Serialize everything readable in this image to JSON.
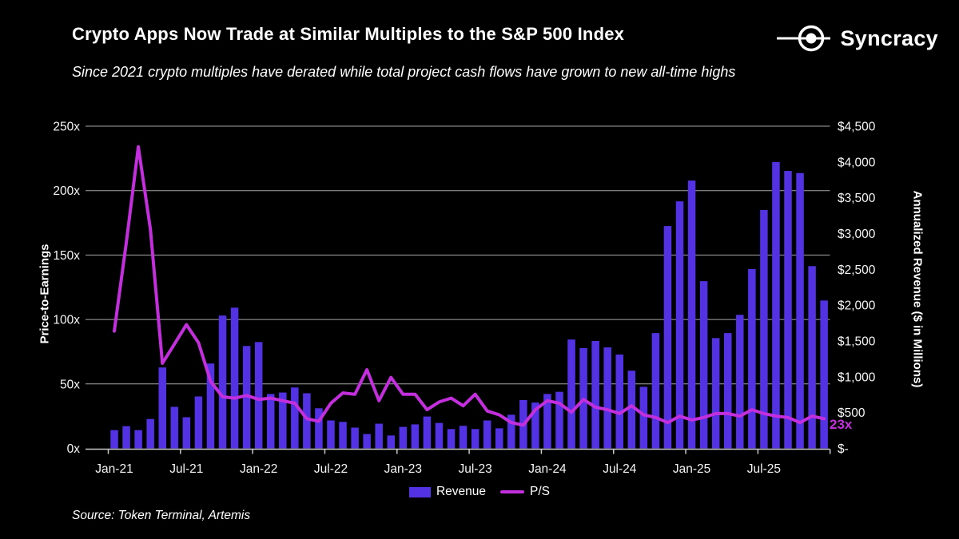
{
  "header": {
    "title": "Crypto Apps Now Trade at Similar Multiples to the S&P 500 Index",
    "subtitle": "Since 2021 crypto multiples have derated while total project cash flows have grown to new all-time highs",
    "brand": "Syncracy"
  },
  "footer": {
    "source": "Source: Token Terminal, Artemis"
  },
  "legend": {
    "items": [
      {
        "label": "Revenue"
      },
      {
        "label": "P/S"
      }
    ]
  },
  "annotation": {
    "text": "23x"
  },
  "colors": {
    "background": "#000000",
    "bar": "#5332E4",
    "line": "#C32FDC",
    "gridline": "#A6A6A6",
    "axis": "#C9C9C9",
    "text": "#FFFFFF"
  },
  "chart_data": {
    "type": "bar+line",
    "x": [
      "Jan-21",
      "Feb-21",
      "Mar-21",
      "Apr-21",
      "May-21",
      "Jun-21",
      "Jul-21",
      "Aug-21",
      "Sep-21",
      "Oct-21",
      "Nov-21",
      "Dec-21",
      "Jan-22",
      "Feb-22",
      "Mar-22",
      "Apr-22",
      "May-22",
      "Jun-22",
      "Jul-22",
      "Aug-22",
      "Sep-22",
      "Oct-22",
      "Nov-22",
      "Dec-22",
      "Jan-23",
      "Feb-23",
      "Mar-23",
      "Apr-23",
      "May-23",
      "Jun-23",
      "Jul-23",
      "Aug-23",
      "Sep-23",
      "Oct-23",
      "Nov-23",
      "Dec-23",
      "Jan-24",
      "Feb-24",
      "Mar-24",
      "Apr-24",
      "May-24",
      "Jun-24",
      "Jul-24",
      "Aug-24",
      "Sep-24",
      "Oct-24",
      "Nov-24",
      "Dec-24",
      "Jan-25",
      "Feb-25",
      "Mar-25",
      "Apr-25",
      "May-25",
      "Jun-25",
      "Jul-25",
      "Aug-25",
      "Sep-25",
      "Oct-25",
      "Nov-25",
      "Dec-25"
    ],
    "series": [
      {
        "name": "Revenue",
        "type": "bar",
        "axis": "right",
        "units": "$M",
        "values": [
          255,
          310,
          255,
          410,
          1130,
          580,
          435,
          725,
          1185,
          1855,
          1965,
          1430,
          1485,
          760,
          780,
          850,
          770,
          560,
          390,
          370,
          290,
          200,
          345,
          180,
          300,
          335,
          445,
          355,
          270,
          315,
          270,
          390,
          280,
          470,
          675,
          640,
          760,
          790,
          1520,
          1400,
          1500,
          1410,
          1310,
          1085,
          860,
          1610,
          3105,
          3450,
          3740,
          2335,
          1540,
          1610,
          1865,
          2505,
          3330,
          4000,
          3875,
          3845,
          2545,
          2065
        ]
      },
      {
        "name": "P/S",
        "type": "line",
        "axis": "left",
        "units": "x",
        "values": [
          91,
          160,
          234,
          170,
          66,
          81,
          96,
          82,
          52,
          40,
          39,
          41,
          38,
          39,
          37,
          35,
          23,
          21,
          35,
          43,
          42,
          61,
          37,
          55,
          42,
          42,
          30,
          36,
          39,
          33,
          42,
          29,
          26,
          20,
          18,
          30,
          37,
          35,
          28,
          38,
          32,
          30,
          27,
          33,
          26,
          24,
          20,
          25,
          22,
          24,
          27,
          27,
          25,
          30,
          27,
          25,
          24,
          20,
          25,
          23
        ]
      }
    ],
    "left_axis": {
      "label": "Price-to-Earnings",
      "min": 0,
      "max": 250,
      "step": 50,
      "ticks": [
        "0x",
        "50x",
        "100x",
        "150x",
        "200x",
        "250x"
      ]
    },
    "right_axis": {
      "label": "Annualized Revenue ($ in Millions)",
      "min": 0,
      "max": 4500,
      "step": 500,
      "ticks": [
        "$-",
        "$500",
        "$1,000",
        "$1,500",
        "$2,000",
        "$2,500",
        "$3,000",
        "$3,500",
        "$4,000",
        "$4,500"
      ]
    },
    "x_tick_labels": [
      "Jan-21",
      "Jul-21",
      "Jan-22",
      "Jul-22",
      "Jan-23",
      "Jul-23",
      "Jan-24",
      "Jul-24",
      "Jan-25",
      "Jul-25"
    ],
    "grid": "horizontal gridlines at 50x steps",
    "legend_position": "bottom-center",
    "end_label": "23x"
  }
}
